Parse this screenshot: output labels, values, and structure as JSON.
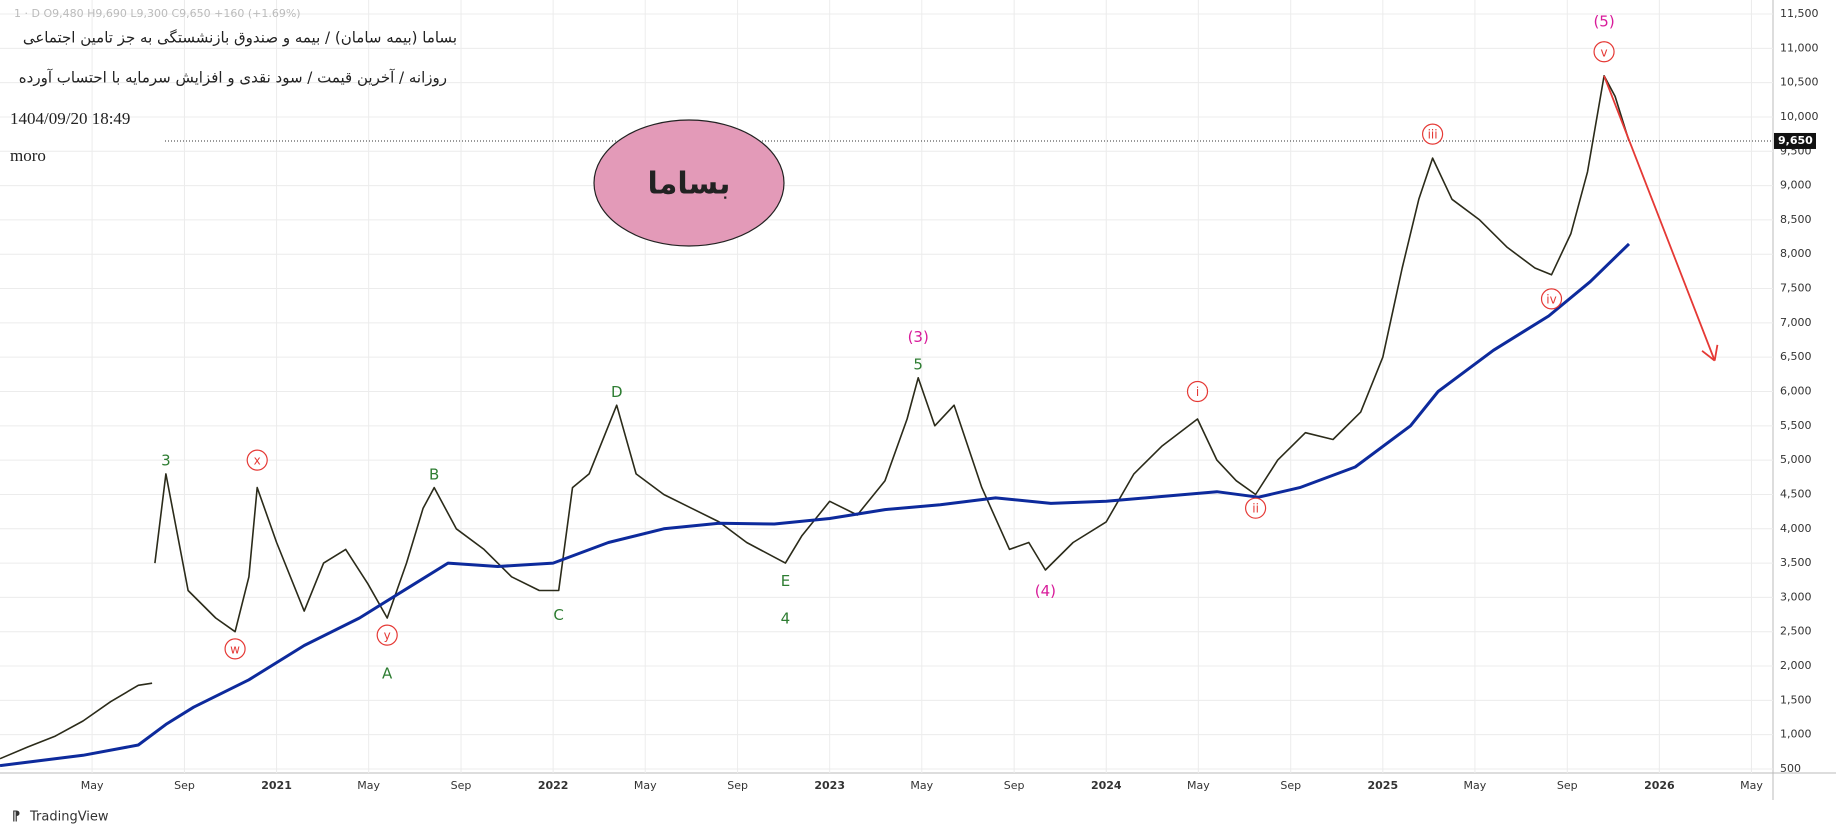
{
  "chart_data": {
    "type": "line",
    "title": "بساما (بیمه سامان) / بیمه و صندوق بازنشستگی به جز تامین اجتماعی",
    "subtitle": "روزانه / آخرین قیمت / سود نقدی و افزایش سرمایه با احتساب آورده",
    "timestamp": "1404/09/20 18:49",
    "author": "moro",
    "ohlc_legend": "1 · D  O9,480 H9,690 L9,300 C9,650 +160 (+1.69%)",
    "badge": "بساما",
    "footer": "TradingView",
    "last_price": {
      "value": 9650,
      "label": "9,650"
    },
    "grid": true,
    "xlim": [
      2020.0,
      2026.4
    ],
    "ylim": [
      500,
      11500
    ],
    "xticks": [
      {
        "value": 2020.333,
        "label": "May"
      },
      {
        "value": 2020.667,
        "label": "Sep"
      },
      2021,
      {
        "value": 2021.333,
        "label": "May"
      },
      {
        "value": 2021.667,
        "label": "Sep"
      },
      2022,
      {
        "value": 2022.333,
        "label": "May"
      },
      {
        "value": 2022.667,
        "label": "Sep"
      },
      2023,
      {
        "value": 2023.333,
        "label": "May"
      },
      {
        "value": 2023.667,
        "label": "Sep"
      },
      2024,
      {
        "value": 2024.333,
        "label": "May"
      },
      {
        "value": 2024.667,
        "label": "Sep"
      },
      2025,
      {
        "value": 2025.333,
        "label": "May"
      },
      {
        "value": 2025.667,
        "label": "Sep"
      },
      2026,
      {
        "value": 2026.333,
        "label": "May"
      }
    ],
    "yticks": [
      {
        "value": 11500,
        "label": "11,500"
      },
      {
        "value": 11000,
        "label": "11,000"
      },
      {
        "value": 10500,
        "label": "10,500"
      },
      {
        "value": 10000,
        "label": "10,000"
      },
      {
        "value": 9500,
        "label": "9,500"
      },
      {
        "value": 9000,
        "label": "9,000"
      },
      {
        "value": 8500,
        "label": "8,500"
      },
      {
        "value": 8000,
        "label": "8,000"
      },
      {
        "value": 7500,
        "label": "7,500"
      },
      {
        "value": 7000,
        "label": "7,000"
      },
      {
        "value": 6500,
        "label": "6,500"
      },
      {
        "value": 6000,
        "label": "6,000"
      },
      {
        "value": 5500,
        "label": "5,500"
      },
      {
        "value": 5000,
        "label": "5,000"
      },
      {
        "value": 4500,
        "label": "4,500"
      },
      {
        "value": 4000,
        "label": "4,000"
      },
      {
        "value": 3500,
        "label": "3,500"
      },
      {
        "value": 3000,
        "label": "3,000"
      },
      {
        "value": 2500,
        "label": "2,500"
      },
      {
        "value": 2000,
        "label": "2,000"
      },
      {
        "value": 1500,
        "label": "1,500"
      },
      {
        "value": 1000,
        "label": "1,000"
      },
      500
    ],
    "series": [
      {
        "color": "#2b2b1a",
        "width": 1.6,
        "x": [
          2020.0,
          2020.1,
          2020.2,
          2020.3,
          2020.4,
          2020.5,
          2020.55,
          null,
          2020.56,
          2020.6,
          2020.68,
          2020.78,
          2020.85,
          2020.9,
          2020.93,
          2021.0,
          2021.1,
          2021.17,
          2021.25,
          2021.33,
          2021.4,
          2021.47,
          2021.53,
          2021.57,
          2021.65,
          2021.75,
          2021.85,
          2021.95,
          2022.02,
          2022.07,
          2022.13,
          2022.23,
          2022.3,
          2022.4,
          2022.5,
          2022.6,
          2022.7,
          2022.84,
          2022.9,
          2023.0,
          2023.1,
          2023.2,
          2023.28,
          2023.32,
          2023.38,
          2023.45,
          2023.55,
          2023.65,
          2023.72,
          2023.78,
          2023.88,
          2024.0,
          2024.1,
          2024.2,
          2024.33,
          2024.4,
          2024.47,
          2024.54,
          2024.62,
          2024.72,
          2024.82,
          2024.92,
          2025.0,
          2025.07,
          2025.13,
          2025.18,
          2025.25,
          2025.35,
          2025.45,
          2025.55,
          2025.61,
          2025.68,
          2025.74,
          2025.8,
          2025.84,
          2025.89
        ],
        "values": [
          650,
          820,
          980,
          1200,
          1480,
          1720,
          1750,
          null,
          3500,
          4800,
          3100,
          2700,
          2500,
          3300,
          4600,
          3800,
          2800,
          3500,
          3700,
          3200,
          2700,
          3500,
          4300,
          4600,
          4000,
          3700,
          3300,
          3100,
          3100,
          4600,
          4800,
          5800,
          4800,
          4500,
          4300,
          4100,
          3800,
          3500,
          3900,
          4400,
          4200,
          4700,
          5600,
          6200,
          5500,
          5800,
          4600,
          3700,
          3800,
          3400,
          3800,
          4100,
          4800,
          5200,
          5600,
          5000,
          4700,
          4500,
          5000,
          5400,
          5300,
          5700,
          6500,
          7800,
          8800,
          9400,
          8800,
          8500,
          8100,
          7800,
          7700,
          8300,
          9200,
          10600,
          10300,
          9650
        ]
      },
      {
        "color": "#0d2a9c",
        "width": 3,
        "x": [
          2020.0,
          2020.3,
          2020.5,
          2020.6,
          2020.7,
          2020.9,
          2021.1,
          2021.3,
          2021.5,
          2021.62,
          2021.8,
          2022.0,
          2022.2,
          2022.4,
          2022.6,
          2022.8,
          2023.0,
          2023.2,
          2023.4,
          2023.6,
          2023.8,
          2024.0,
          2024.2,
          2024.4,
          2024.55,
          2024.7,
          2024.9,
          2025.1,
          2025.2,
          2025.4,
          2025.6,
          2025.75,
          2025.89
        ],
        "values": [
          550,
          700,
          850,
          1150,
          1400,
          1800,
          2300,
          2700,
          3200,
          3500,
          3450,
          3500,
          3800,
          4000,
          4080,
          4070,
          4150,
          4280,
          4350,
          4450,
          4370,
          4400,
          4470,
          4540,
          4460,
          4600,
          4900,
          5500,
          6000,
          6600,
          7100,
          7600,
          8150
        ]
      }
    ],
    "annotations": [
      {
        "text": "3",
        "x": 2020.6,
        "y": 5000,
        "color": "#2e7d32",
        "circled": false
      },
      {
        "text": "w",
        "x": 2020.85,
        "y": 2250,
        "color": "#e53935",
        "circled": true
      },
      {
        "text": "x",
        "x": 2020.93,
        "y": 5000,
        "color": "#e53935",
        "circled": true
      },
      {
        "text": "y",
        "x": 2021.4,
        "y": 2450,
        "color": "#e53935",
        "circled": true
      },
      {
        "text": "A",
        "x": 2021.4,
        "y": 1900,
        "color": "#2e7d32",
        "circled": false
      },
      {
        "text": "B",
        "x": 2021.57,
        "y": 4800,
        "color": "#2e7d32",
        "circled": false
      },
      {
        "text": "C",
        "x": 2022.02,
        "y": 2750,
        "color": "#2e7d32",
        "circled": false
      },
      {
        "text": "D",
        "x": 2022.23,
        "y": 6000,
        "color": "#2e7d32",
        "circled": false
      },
      {
        "text": "E",
        "x": 2022.84,
        "y": 3250,
        "color": "#2e7d32",
        "circled": false
      },
      {
        "text": "4",
        "x": 2022.84,
        "y": 2700,
        "color": "#2e7d32",
        "circled": false
      },
      {
        "text": "5",
        "x": 2023.32,
        "y": 6400,
        "color": "#2e7d32",
        "circled": false
      },
      {
        "text": "(3)",
        "x": 2023.32,
        "y": 6800,
        "color": "#d81b9a",
        "circled": false
      },
      {
        "text": "(4)",
        "x": 2023.78,
        "y": 3100,
        "color": "#d81b9a",
        "circled": false
      },
      {
        "text": "i",
        "x": 2024.33,
        "y": 6000,
        "color": "#e53935",
        "circled": true
      },
      {
        "text": "ii",
        "x": 2024.54,
        "y": 4300,
        "color": "#e53935",
        "circled": true
      },
      {
        "text": "iii",
        "x": 2025.18,
        "y": 9750,
        "color": "#e53935",
        "circled": true
      },
      {
        "text": "iv",
        "x": 2025.61,
        "y": 7350,
        "color": "#e53935",
        "circled": true
      },
      {
        "text": "v",
        "x": 2025.8,
        "y": 10950,
        "color": "#e53935",
        "circled": true
      },
      {
        "text": "(5)",
        "x": 2025.8,
        "y": 11400,
        "color": "#d81b9a",
        "circled": false
      }
    ],
    "arrow": {
      "x": [
        2025.8,
        2026.2
      ],
      "y": [
        10600,
        6450
      ],
      "color": "#e53935"
    }
  }
}
